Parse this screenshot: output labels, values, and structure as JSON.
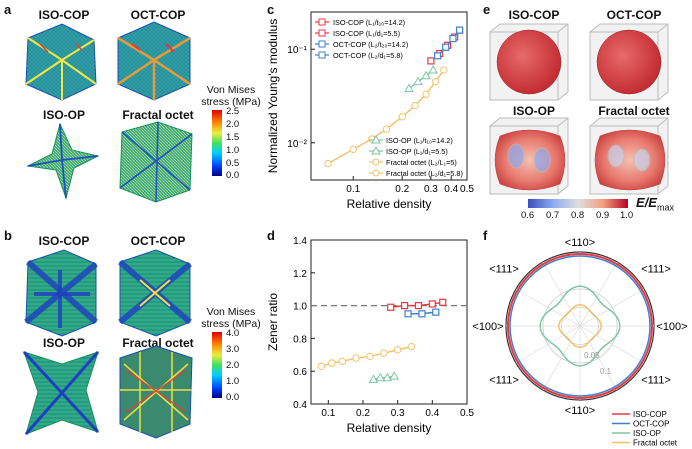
{
  "panels": {
    "a": {
      "letter": "a",
      "labels": [
        "ISO-COP",
        "OCT-COP",
        "ISO-OP",
        "Fractal octet"
      ],
      "colorbar": {
        "title_line1": "Von Mises",
        "title_line2": "stress (MPa)",
        "ticks": [
          "2.5",
          "2.0",
          "1.5",
          "1.0",
          "0.5",
          "0.0"
        ]
      }
    },
    "b": {
      "letter": "b",
      "labels": [
        "ISO-COP",
        "OCT-COP",
        "ISO-OP",
        "Fractal octet"
      ],
      "colorbar": {
        "title_line1": "Von Mises",
        "title_line2": "stress (MPa)",
        "ticks": [
          "4.0",
          "3.0",
          "2.0",
          "1.0",
          "0.0"
        ]
      }
    },
    "c": {
      "letter": "c"
    },
    "d": {
      "letter": "d"
    },
    "e": {
      "letter": "e",
      "labels": [
        "ISO-COP",
        "OCT-COP",
        "ISO-OP",
        "Fractal octet"
      ],
      "colorbar": {
        "ticks": [
          "0.6",
          "0.7",
          "0.8",
          "0.9",
          "1.0"
        ],
        "label": "E/E",
        "label_sub": "max"
      }
    },
    "f": {
      "letter": "f"
    }
  },
  "chart_data": [
    {
      "id": "c",
      "type": "scatter",
      "xscale": "log",
      "yscale": "log",
      "xlabel": "Relative density",
      "ylabel": "Normalized Young's modulus",
      "xticks": [
        "0.1",
        "0.2",
        "0.3",
        "0.4",
        "0.5"
      ],
      "yticks": [
        "10⁻²",
        "10⁻¹"
      ],
      "legend_top": [
        "ISO-COP (L₁/t₁₀=14.2)",
        "ISO-COP (L₁/d₁=5.5)",
        "OCT-COP (L₂/t₂₀=14.2)",
        "OCT-COP (L₂/d₁=5.8)"
      ],
      "legend_bottom": [
        "ISO-OP (L₁/t₁₀=14.2)",
        "ISO-OP (L₁/d₁=5.5)",
        "Fractal octet (L₂/L₁=5)",
        "Fractal octet (L₂/d₁=5.8)"
      ],
      "series": [
        {
          "name": "ISO-COP",
          "color": "#e8393f",
          "x": [
            0.3,
            0.34,
            0.38,
            0.42,
            0.45
          ],
          "y": [
            0.075,
            0.09,
            0.11,
            0.135,
            0.16
          ]
        },
        {
          "name": "OCT-COP",
          "color": "#3f7fd0",
          "x": [
            0.33,
            0.37,
            0.41,
            0.45
          ],
          "y": [
            0.085,
            0.105,
            0.13,
            0.16
          ]
        },
        {
          "name": "ISO-OP",
          "color": "#7fc6a4",
          "x": [
            0.22,
            0.25,
            0.28,
            0.31
          ],
          "y": [
            0.038,
            0.045,
            0.052,
            0.06
          ]
        },
        {
          "name": "Fractal octet",
          "color": "#f2c36b",
          "x": [
            0.07,
            0.1,
            0.13,
            0.16,
            0.2,
            0.24,
            0.28,
            0.32,
            0.36
          ],
          "y": [
            0.006,
            0.0085,
            0.011,
            0.014,
            0.019,
            0.025,
            0.033,
            0.045,
            0.06
          ]
        }
      ]
    },
    {
      "id": "d",
      "type": "scatter",
      "xlabel": "Relative density",
      "ylabel": "Zener ratio",
      "xlim": [
        0.05,
        0.5
      ],
      "ylim": [
        0.4,
        1.4
      ],
      "xticks": [
        "0.1",
        "0.2",
        "0.3",
        "0.4",
        "0.5"
      ],
      "yticks": [
        "0.4",
        "0.6",
        "0.8",
        "1.0",
        "1.2",
        "1.4"
      ],
      "reference_line": 1.0,
      "series": [
        {
          "name": "ISO-COP",
          "color": "#e8393f",
          "x": [
            0.28,
            0.32,
            0.36,
            0.4,
            0.43
          ],
          "y": [
            0.99,
            1.0,
            1.0,
            1.01,
            1.02
          ]
        },
        {
          "name": "OCT-COP",
          "color": "#3f7fd0",
          "x": [
            0.33,
            0.37,
            0.41
          ],
          "y": [
            0.95,
            0.95,
            0.96
          ]
        },
        {
          "name": "ISO-OP",
          "color": "#7fc6a4",
          "x": [
            0.23,
            0.25,
            0.27,
            0.29
          ],
          "y": [
            0.55,
            0.56,
            0.56,
            0.57
          ]
        },
        {
          "name": "Fractal octet",
          "color": "#f2c36b",
          "x": [
            0.08,
            0.11,
            0.14,
            0.18,
            0.22,
            0.26,
            0.3,
            0.34
          ],
          "y": [
            0.63,
            0.65,
            0.66,
            0.68,
            0.69,
            0.71,
            0.73,
            0.75
          ]
        }
      ]
    },
    {
      "id": "f",
      "type": "polar",
      "direction_labels": [
        "<110>",
        "<111>",
        "<100>",
        "<111>",
        "<110>",
        "<111>",
        "<100>",
        "<111>"
      ],
      "radial_ticks": [
        "0.05",
        "0.1"
      ],
      "legend": [
        "ISO-COP",
        "OCT-COP",
        "ISO-OP",
        "Fractal octet"
      ],
      "colors": [
        "#e8393f",
        "#3f7fd0",
        "#7fc6a4",
        "#f2c36b"
      ]
    }
  ]
}
